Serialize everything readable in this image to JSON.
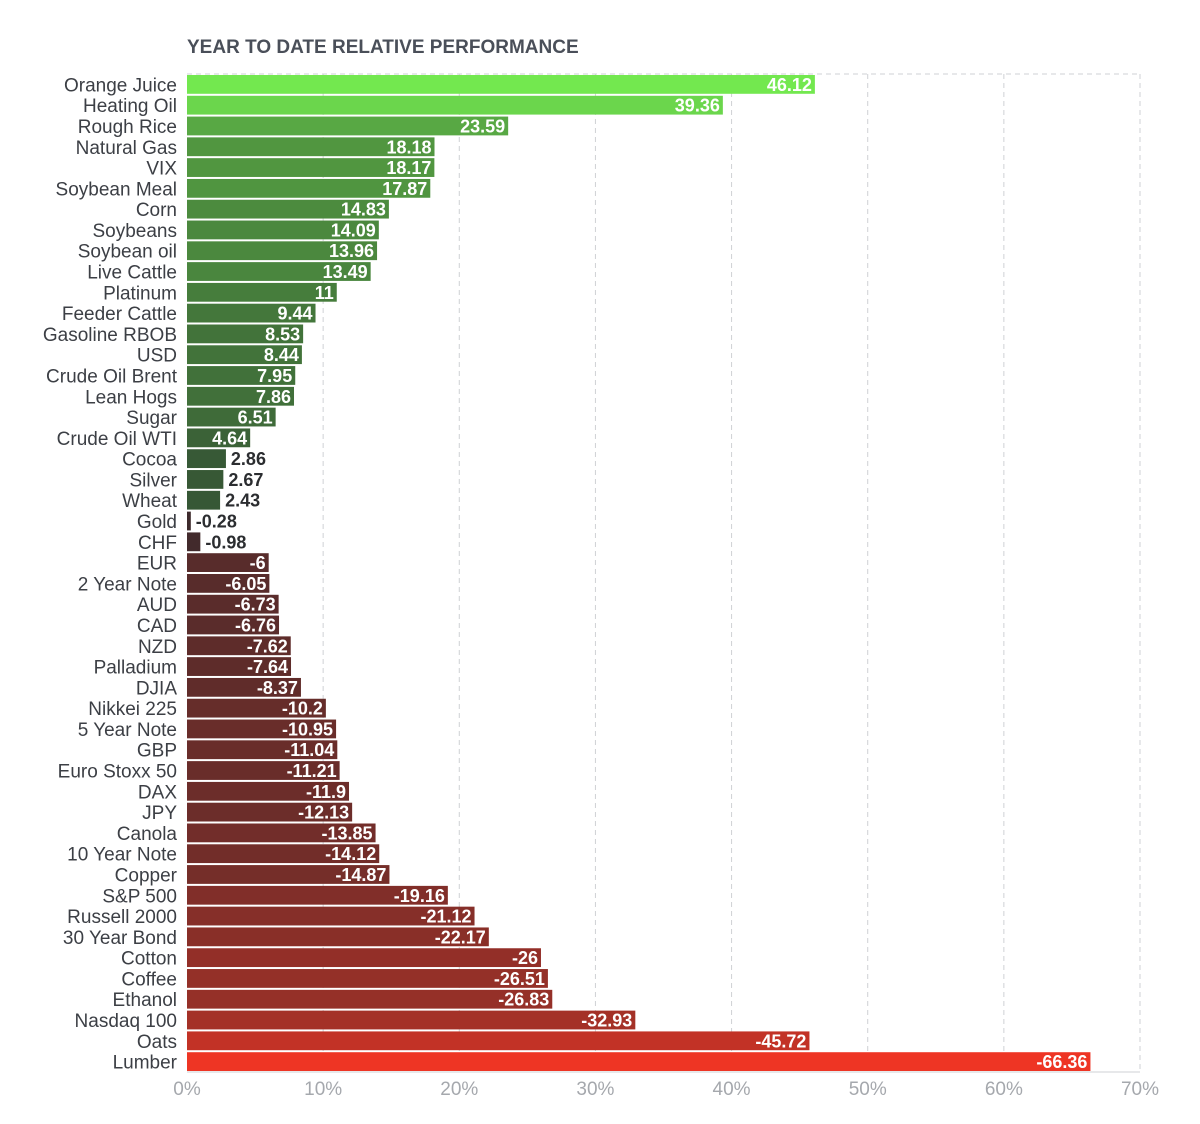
{
  "chart_data": {
    "type": "bar",
    "orientation": "horizontal",
    "title": "YEAR TO DATE RELATIVE PERFORMANCE",
    "xlabel": "",
    "ylabel": "",
    "xlim": [
      0,
      70
    ],
    "value_mode": "absolute value plotted, signed value labeled",
    "grid": true,
    "ticks": [
      {
        "value": 0,
        "label": "0%"
      },
      {
        "value": 10,
        "label": "10%"
      },
      {
        "value": 20,
        "label": "20%"
      },
      {
        "value": 30,
        "label": "30%"
      },
      {
        "value": 40,
        "label": "40%"
      },
      {
        "value": 50,
        "label": "50%"
      },
      {
        "value": 60,
        "label": "60%"
      },
      {
        "value": 70,
        "label": "70%"
      }
    ],
    "categories": [
      "Orange Juice",
      "Heating Oil",
      "Rough Rice",
      "Natural Gas",
      "VIX",
      "Soybean Meal",
      "Corn",
      "Soybeans",
      "Soybean oil",
      "Live Cattle",
      "Platinum",
      "Feeder Cattle",
      "Gasoline RBOB",
      "USD",
      "Crude Oil Brent",
      "Lean Hogs",
      "Sugar",
      "Crude Oil WTI",
      "Cocoa",
      "Silver",
      "Wheat",
      "Gold",
      "CHF",
      "EUR",
      "2 Year Note",
      "AUD",
      "CAD",
      "NZD",
      "Palladium",
      "DJIA",
      "Nikkei 225",
      "5 Year Note",
      "GBP",
      "Euro Stoxx 50",
      "DAX",
      "JPY",
      "Canola",
      "10 Year Note",
      "Copper",
      "S&P 500",
      "Russell 2000",
      "30 Year Bond",
      "Cotton",
      "Coffee",
      "Ethanol",
      "Nasdaq 100",
      "Oats",
      "Lumber"
    ],
    "values": [
      46.12,
      39.36,
      23.59,
      18.18,
      18.17,
      17.87,
      14.83,
      14.09,
      13.96,
      13.49,
      11,
      9.44,
      8.53,
      8.44,
      7.95,
      7.86,
      6.51,
      4.64,
      2.86,
      2.67,
      2.43,
      -0.28,
      -0.98,
      -6,
      -6.05,
      -6.73,
      -6.76,
      -7.62,
      -7.64,
      -8.37,
      -10.2,
      -10.95,
      -11.04,
      -11.21,
      -11.9,
      -12.13,
      -13.85,
      -14.12,
      -14.87,
      -19.16,
      -21.12,
      -22.17,
      -26,
      -26.51,
      -26.83,
      -32.93,
      -45.72,
      -66.36
    ],
    "value_labels": [
      "46.12",
      "39.36",
      "23.59",
      "18.18",
      "18.17",
      "17.87",
      "14.83",
      "14.09",
      "13.96",
      "13.49",
      "11",
      "9.44",
      "8.53",
      "8.44",
      "7.95",
      "7.86",
      "6.51",
      "4.64",
      "2.86",
      "2.67",
      "2.43",
      "-0.28",
      "-0.98",
      "-6",
      "-6.05",
      "-6.73",
      "-6.76",
      "-7.62",
      "-7.64",
      "-8.37",
      "-10.2",
      "-10.95",
      "-11.04",
      "-11.21",
      "-11.9",
      "-12.13",
      "-13.85",
      "-14.12",
      "-14.87",
      "-19.16",
      "-21.12",
      "-22.17",
      "-26",
      "-26.51",
      "-26.83",
      "-32.93",
      "-45.72",
      "-66.36"
    ],
    "colors": {
      "positive_high": "#73e84f",
      "positive_low": "#2f4532",
      "negative_low": "#3a2a2c",
      "negative_high": "#ee3524",
      "label_inside": "#ffffff",
      "label_outside": "#2b2d30",
      "grid": "#cfd1d4",
      "axis_tick": "#a5a8ad",
      "title": "#4a4f59"
    }
  }
}
